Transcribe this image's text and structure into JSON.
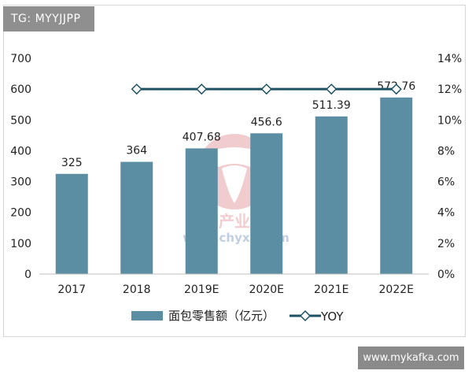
{
  "tag_text": "TG: MYYJJPP",
  "site_text": "www.mykafka.com",
  "watermark": {
    "cn": "中国产业信息",
    "url": "www.chyxx.com"
  },
  "colors": {
    "bar": "#5b8ea3",
    "line": "#1d5263",
    "marker_fill": "#ffffff"
  },
  "chart_data": {
    "type": "bar",
    "categories": [
      "2017",
      "2018",
      "2019E",
      "2020E",
      "2021E",
      "2022E"
    ],
    "series": [
      {
        "name": "面包零售额（亿元）",
        "type": "bar",
        "axis": "left",
        "values": [
          325,
          364,
          407.68,
          456.6,
          511.39,
          572.76
        ],
        "labels": [
          "325",
          "364",
          "407.68",
          "456.6",
          "511.39",
          "572.76"
        ]
      },
      {
        "name": "YOY",
        "type": "line",
        "axis": "right",
        "values": [
          null,
          12,
          12,
          12,
          12,
          12
        ]
      }
    ],
    "left_axis": {
      "ylim": [
        0,
        700
      ],
      "ticks": [
        "0",
        "100",
        "200",
        "300",
        "400",
        "500",
        "600",
        "700"
      ]
    },
    "right_axis": {
      "ylim": [
        0,
        14
      ],
      "ticks": [
        "0%",
        "2%",
        "4%",
        "6%",
        "8%",
        "10%",
        "12%",
        "14%"
      ]
    },
    "legend_position": "bottom",
    "grid": false
  }
}
